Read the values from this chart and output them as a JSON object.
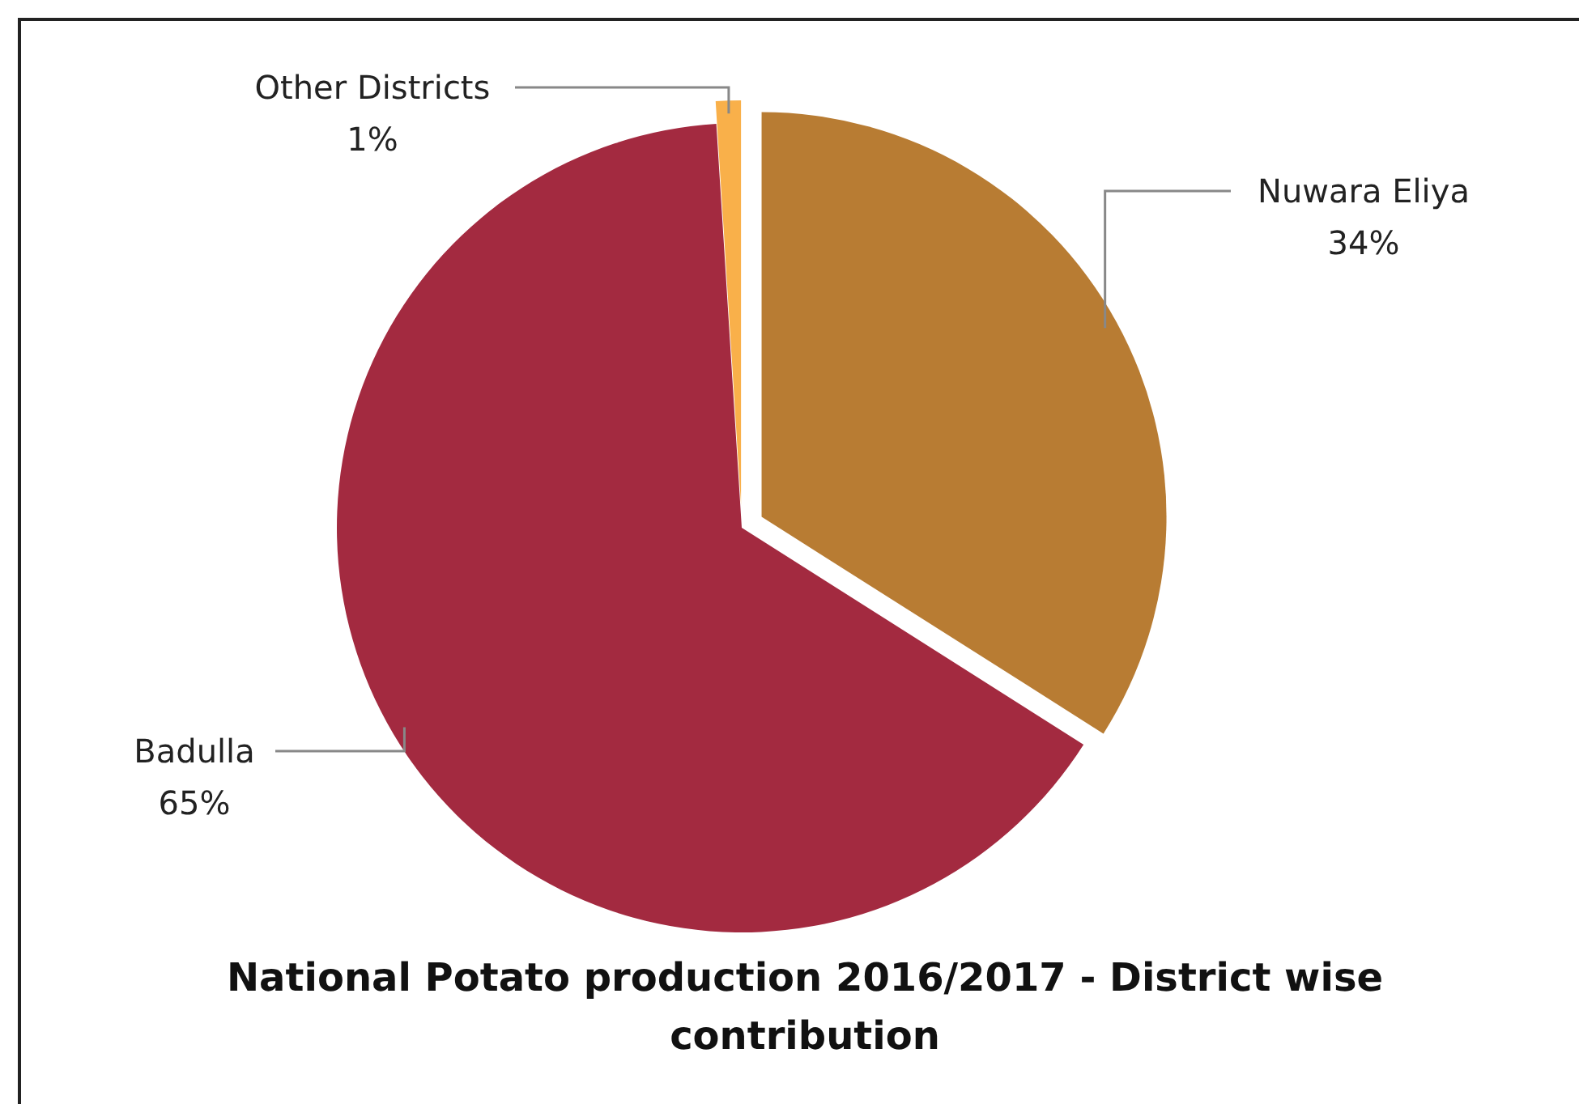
{
  "chart_data": {
    "type": "pie",
    "title": "National Potato production 2016/2017 - District wise contribution",
    "categories": [
      "Nuwara Eliya",
      "Badulla",
      "Other Districts"
    ],
    "values": [
      34,
      65,
      1
    ],
    "colors": [
      "#b87c33",
      "#a32a40",
      "#f9b04a"
    ],
    "value_labels": [
      "34%",
      "65%",
      "1%"
    ]
  }
}
